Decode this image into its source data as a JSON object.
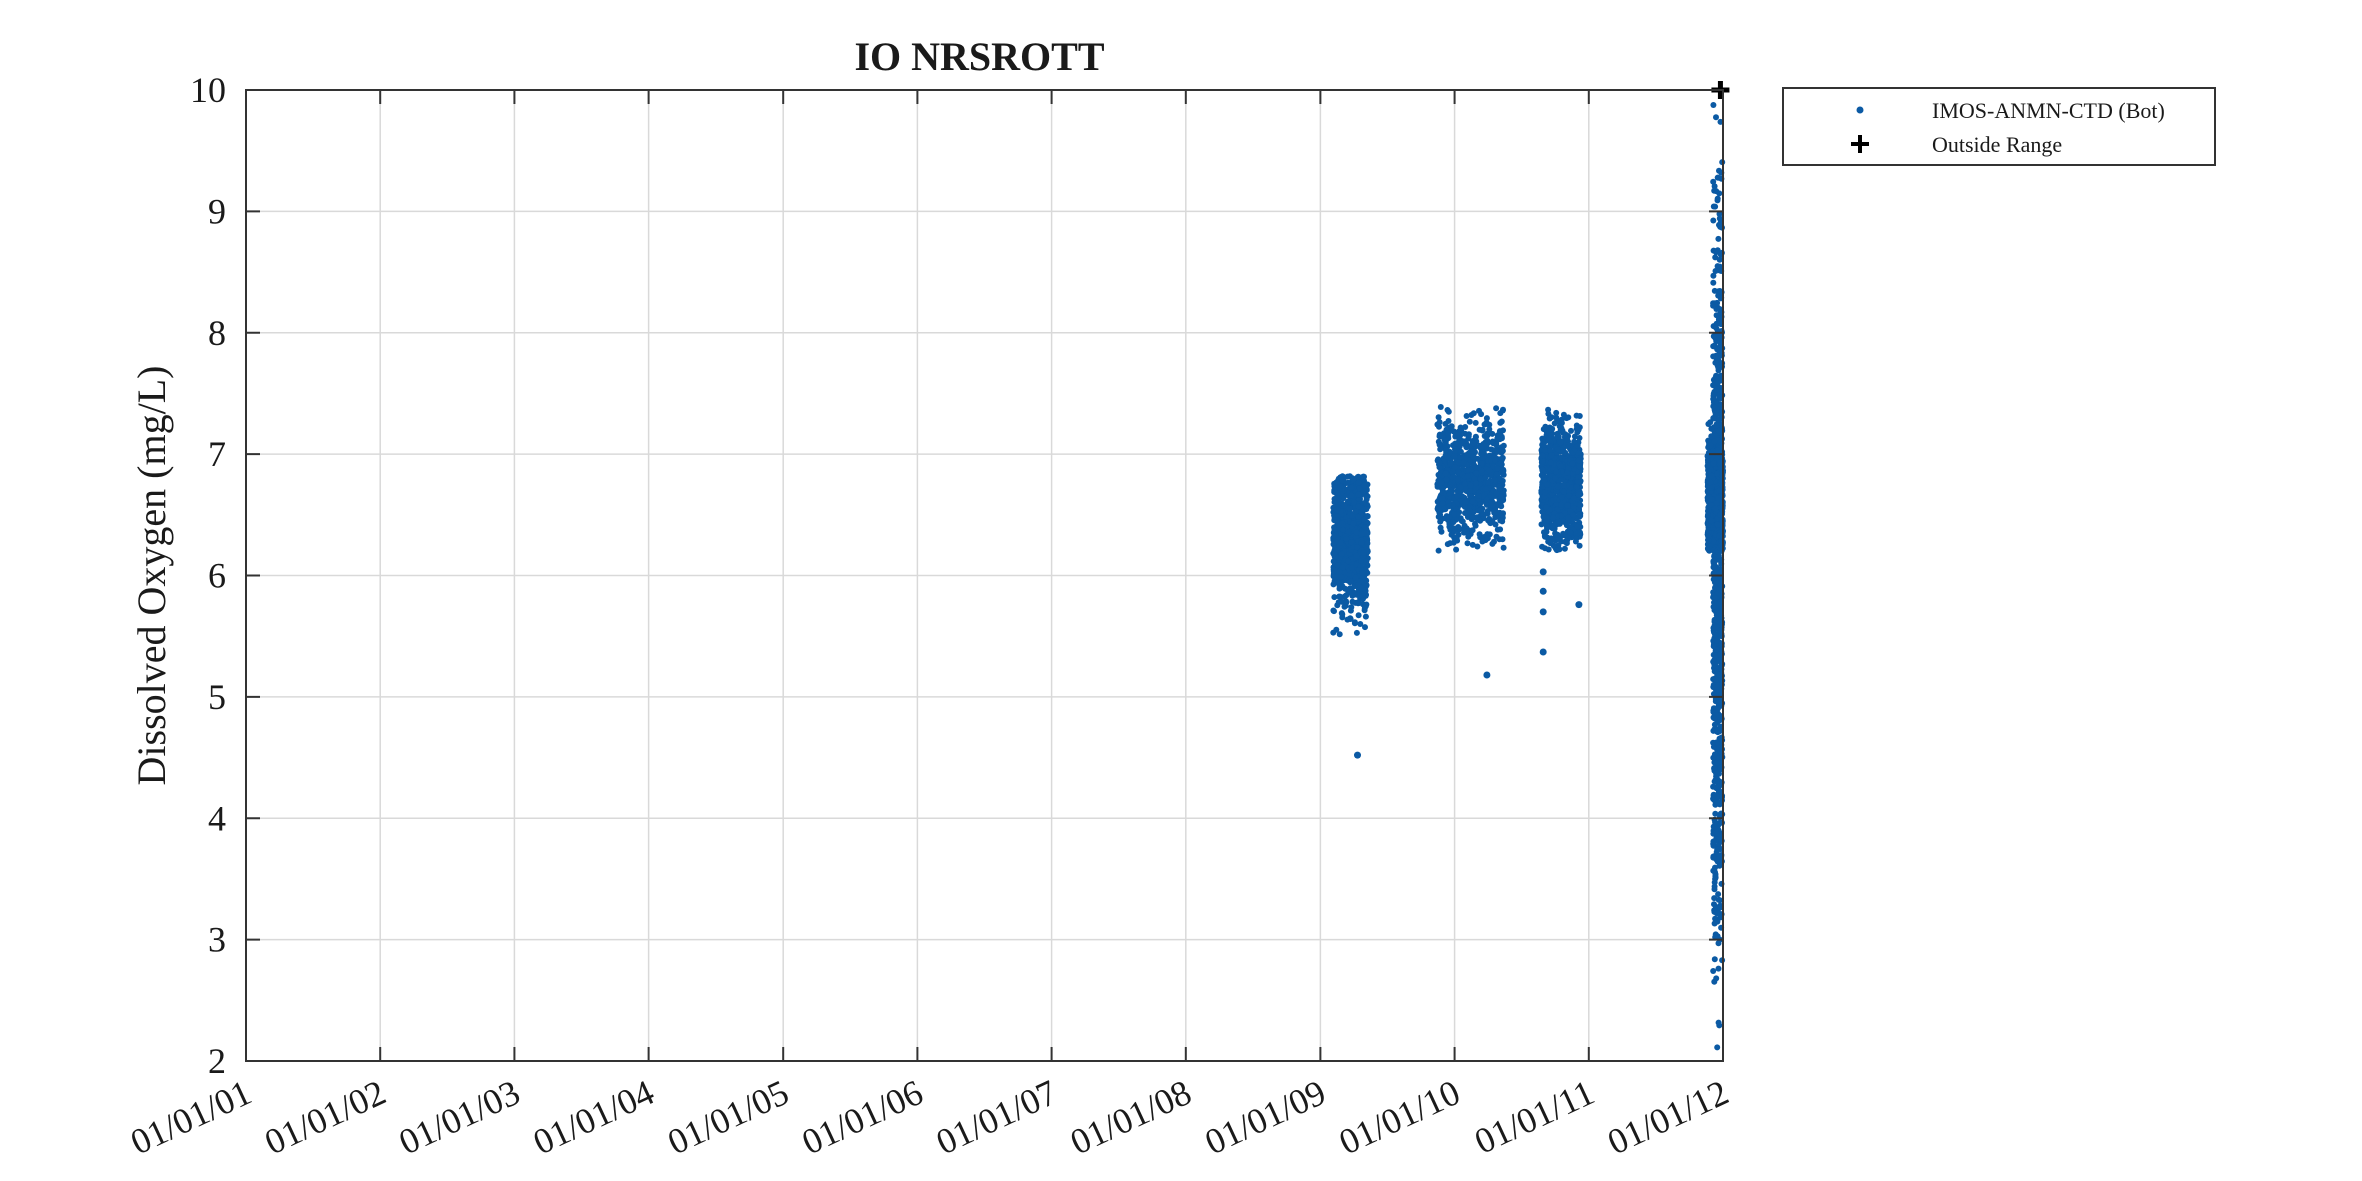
{
  "chart_data": {
    "type": "scatter",
    "title": "IO NRSROTT",
    "xlabel": "",
    "ylabel": "Dissolved Oxygen (mg/L)",
    "xlim": [
      "2001-01-01",
      "2012-01-01"
    ],
    "ylim": [
      2,
      10
    ],
    "xticks": [
      "2001-01-01",
      "2002-01-01",
      "2003-01-01",
      "2004-01-01",
      "2005-01-01",
      "2006-01-01",
      "2007-01-01",
      "2008-01-01",
      "2009-01-01",
      "2010-01-01",
      "2011-01-01",
      "2012-01-01"
    ],
    "xtick_labels": [
      "01/01/01",
      "01/01/02",
      "01/01/03",
      "01/01/04",
      "01/01/05",
      "01/01/06",
      "01/01/07",
      "01/01/08",
      "01/01/09",
      "01/01/10",
      "01/01/11",
      "01/01/12"
    ],
    "yticks": [
      2,
      3,
      4,
      5,
      6,
      7,
      8,
      9,
      10
    ],
    "grid": true,
    "legend_position": "outside-top-right",
    "colors": {
      "series": "#0b5aa4",
      "outside": "#000000",
      "grid": "#d9d9d9",
      "axis": "#333333"
    },
    "series": [
      {
        "name": "IMOS-ANMN-CTD (Bot)",
        "marker": "dot",
        "segments": [
          {
            "x_start": "2009-02-05",
            "x_end": "2009-05-10",
            "ymin": 5.25,
            "ymax": 6.82,
            "y_center": 6.3
          },
          {
            "x_start": "2009-11-15",
            "x_end": "2010-05-15",
            "ymin": 6.2,
            "ymax": 7.47,
            "y_center": 6.8
          },
          {
            "x_start": "2010-08-25",
            "x_end": "2010-12-10",
            "ymin": 6.2,
            "ymax": 7.5,
            "y_center": 6.75
          },
          {
            "x_start": "2011-12-05",
            "x_end": "2011-12-30",
            "ymin": 2.0,
            "ymax": 9.9,
            "y_center": 6.0
          },
          {
            "x_start": "2011-11-20",
            "x_end": "2012-01-01",
            "ymin": 6.2,
            "ymax": 7.6,
            "y_center": 6.6
          }
        ],
        "outliers": [
          [
            "2009-04-12",
            4.52
          ],
          [
            "2010-03-30",
            5.18
          ],
          [
            "2010-08-30",
            6.03
          ],
          [
            "2010-08-30",
            5.87
          ],
          [
            "2010-08-30",
            5.7
          ],
          [
            "2010-08-30",
            5.37
          ],
          [
            "2010-12-05",
            5.76
          ]
        ]
      },
      {
        "name": "Outside Range",
        "marker": "plus",
        "points": [
          [
            "2011-12-25",
            10.0
          ]
        ]
      }
    ]
  }
}
